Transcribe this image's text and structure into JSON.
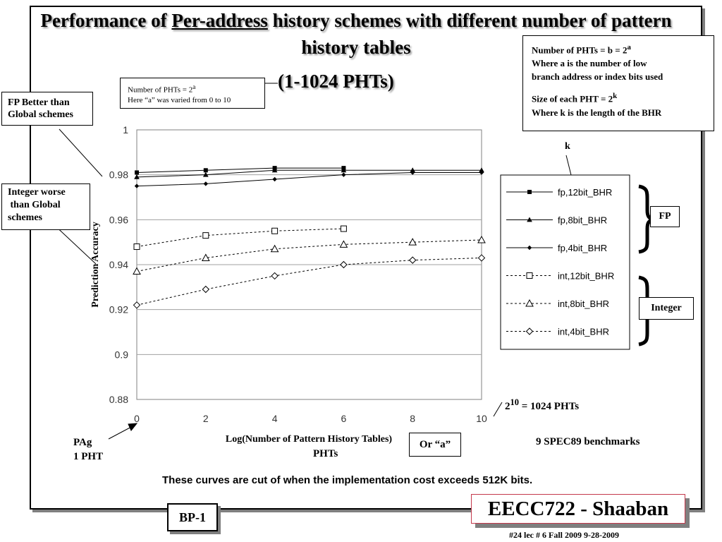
{
  "slide": {
    "title_part1": "Performance of ",
    "title_underlined": "Per-address",
    "title_part2": " history schemes with different number of pattern history tables",
    "subtitle": "(1-1024 PHTs)",
    "bp_label": "BP-1",
    "course_label": "EECC722 - Shaaban",
    "footer": "#24   lec # 6   Fall 2009   9-28-2009"
  },
  "notes": {
    "small_line1_prefix": "Number of PHTs = 2",
    "small_line1_sup": "a",
    "small_line2": "Here “a” was varied from 0 to 10",
    "right_line1_prefix": "Number of PHTs = b = 2",
    "right_line1_sup": "a",
    "right_line2": "Where a is the number of low",
    "right_line3": "branch address or index bits used",
    "right_line4_prefix": "Size of each PHT = 2",
    "right_line4_sup": "k",
    "right_line5": "Where k is the length of the BHR",
    "fp_better": "FP Better than Global schemes",
    "int_worse": "Integer worse\n than Global\nschemes",
    "k_label": "k",
    "fp_group": "FP",
    "int_group": "Integer",
    "phts_1024_base": "2",
    "phts_1024_sup": "10",
    "phts_1024_rest": " = 1024 PHTs",
    "spec": "9 SPEC89 benchmarks",
    "pag_line1": "PAg",
    "pag_line2": "1 PHT",
    "or_a": "Or “a”",
    "phts_word": "PHTs",
    "cutoff_note": "These curves are cut of when the implementation cost exceeds 512K bits."
  },
  "chart_data": {
    "type": "line",
    "xlabel": "Log(Number of Pattern History Tables)",
    "ylabel": "Prediction Accuracy",
    "xlim": [
      0,
      10
    ],
    "ylim": [
      0.88,
      1
    ],
    "x_ticks": [
      0,
      2,
      4,
      6,
      8,
      10
    ],
    "y_ticks": [
      0.88,
      0.9,
      0.92,
      0.94,
      0.96,
      0.98,
      1
    ],
    "y_tick_labels": [
      "0.88",
      "0.9",
      "0.92",
      "0.94",
      "0.96",
      "0.98",
      "1"
    ],
    "grid": "horizontal",
    "legend_position": "right",
    "series": [
      {
        "name": "fp,12bit_BHR",
        "marker": "filled-square",
        "dashed": false,
        "x": [
          0,
          2,
          4,
          6
        ],
        "y": [
          0.981,
          0.982,
          0.983,
          0.983
        ]
      },
      {
        "name": "fp,8bit_BHR",
        "marker": "filled-triangle",
        "dashed": false,
        "x": [
          0,
          2,
          4,
          6,
          8,
          10
        ],
        "y": [
          0.979,
          0.98,
          0.982,
          0.982,
          0.982,
          0.982
        ]
      },
      {
        "name": "fp,4bit_BHR",
        "marker": "filled-diamond",
        "dashed": false,
        "x": [
          0,
          2,
          4,
          6,
          8,
          10
        ],
        "y": [
          0.975,
          0.976,
          0.978,
          0.98,
          0.981,
          0.981
        ]
      },
      {
        "name": "int,12bit_BHR",
        "marker": "open-square",
        "dashed": true,
        "x": [
          0,
          2,
          4,
          6
        ],
        "y": [
          0.948,
          0.953,
          0.955,
          0.956
        ]
      },
      {
        "name": "int,8bit_BHR",
        "marker": "open-triangle",
        "dashed": true,
        "x": [
          0,
          2,
          4,
          6,
          8,
          10
        ],
        "y": [
          0.937,
          0.943,
          0.947,
          0.949,
          0.95,
          0.951
        ]
      },
      {
        "name": "int,4bit_BHR",
        "marker": "open-diamond",
        "dashed": true,
        "x": [
          0,
          2,
          4,
          6,
          8,
          10
        ],
        "y": [
          0.922,
          0.929,
          0.935,
          0.94,
          0.942,
          0.943
        ]
      }
    ]
  }
}
